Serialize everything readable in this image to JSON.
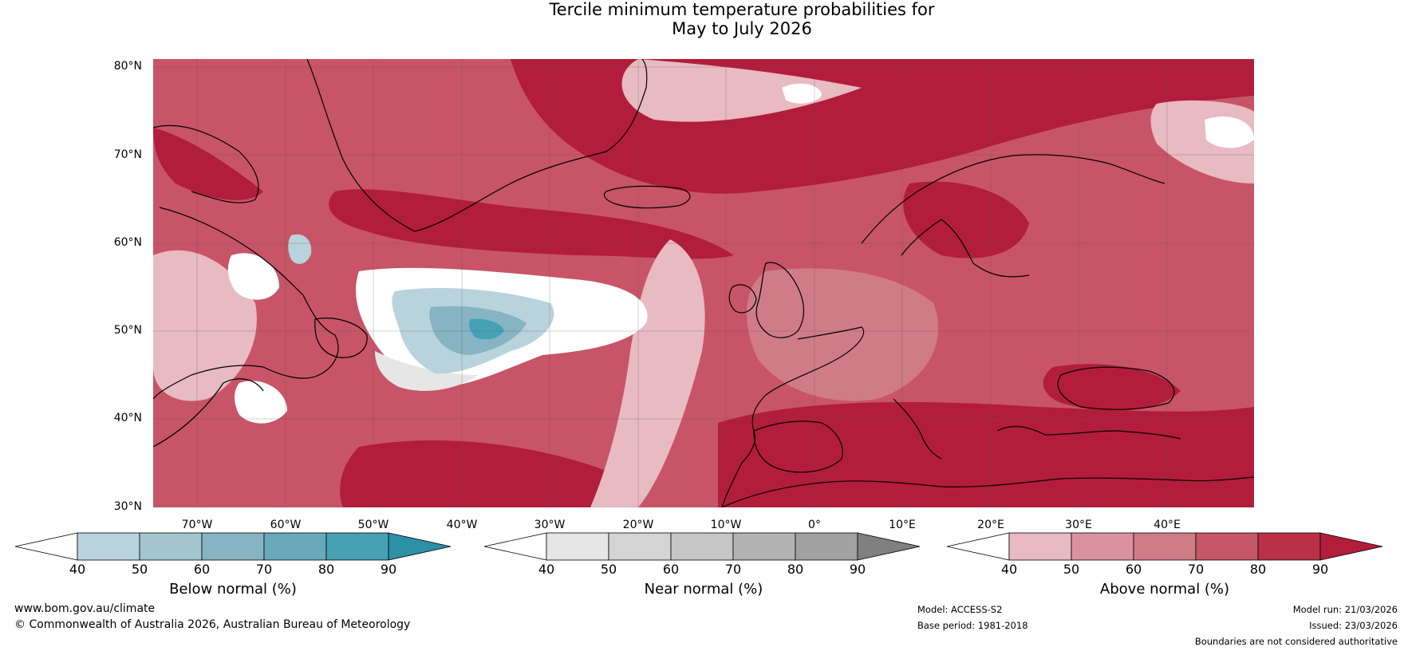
{
  "title": {
    "line1": "Tercile minimum temperature probabilities for",
    "line2": "May to July 2026"
  },
  "axes": {
    "lat_labels": [
      "80°N",
      "70°N",
      "60°N",
      "50°N",
      "40°N",
      "30°N"
    ],
    "lon_labels": [
      "70°W",
      "60°W",
      "50°W",
      "40°W",
      "30°W",
      "20°W",
      "10°W",
      "0°",
      "10°E",
      "20°E",
      "30°E",
      "40°E"
    ]
  },
  "colorbars": {
    "below": {
      "title": "Below normal (%)",
      "ticks": [
        "40",
        "50",
        "60",
        "70",
        "80",
        "90"
      ],
      "colors": [
        "#ffffff",
        "#b9d3dc",
        "#a3c5cf",
        "#86b4c3",
        "#68a9bb",
        "#46a1b4",
        "#2d91a6"
      ]
    },
    "near": {
      "title": "Near normal (%)",
      "ticks": [
        "40",
        "50",
        "60",
        "70",
        "80",
        "90"
      ],
      "colors": [
        "#ffffff",
        "#e6e6e6",
        "#d4d4d4",
        "#c6c6c6",
        "#b3b3b3",
        "#a1a1a1",
        "#808080"
      ]
    },
    "above": {
      "title": "Above normal (%)",
      "ticks": [
        "40",
        "50",
        "60",
        "70",
        "80",
        "90"
      ],
      "colors": [
        "#ffffff",
        "#e8bac2",
        "#da929e",
        "#d07c88",
        "#c55767",
        "#b93146",
        "#b21d3c"
      ]
    }
  },
  "footer": {
    "url": "www.bom.gov.au/climate",
    "copyright": "© Commonwealth of Australia 2026, Australian Bureau of Meteorology",
    "model": "Model: ACCESS-S2",
    "base_period": "Base period: 1981-2018",
    "model_run": "Model run: 21/03/2026",
    "issued": "Issued: 23/03/2026",
    "disclaimer": "Boundaries are not considered authoritative"
  },
  "map_colors": {
    "ocean_base": "#c85468",
    "above_light": "#e8bac2",
    "above_mid": "#d07c88",
    "above_dark": "#b21d3c",
    "near_white": "#ffffff",
    "near_grey": "#e6e6e6",
    "below_light": "#b9d3dc",
    "below_mid": "#86b4c3",
    "below_dark": "#46a1b4",
    "coast": "#000000",
    "border": "#808080"
  }
}
